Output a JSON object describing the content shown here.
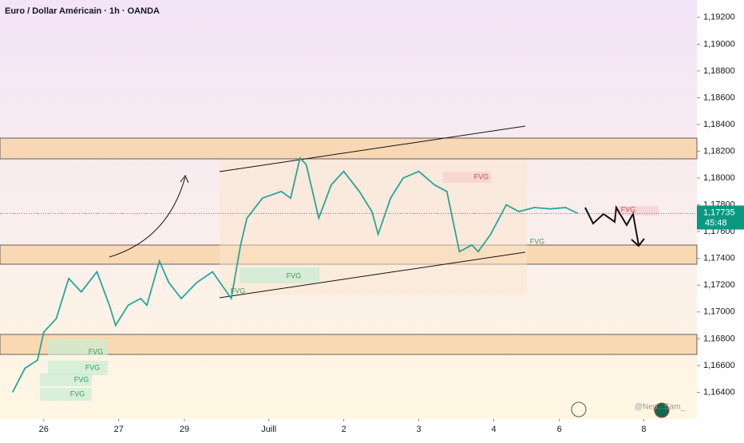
{
  "chart_data": {
    "type": "line",
    "title": "Euro / Dollar Américain · 1h · OANDA",
    "x": [
      -10,
      -6,
      -2,
      0,
      4,
      8,
      12,
      17,
      21,
      23,
      27,
      31,
      33,
      37,
      40,
      44,
      49,
      54,
      60,
      63,
      65,
      70,
      76,
      79,
      82,
      84,
      87,
      88,
      92,
      96,
      101,
      105,
      107,
      111,
      115,
      120,
      125,
      129,
      133,
      137,
      139,
      143,
      148,
      152,
      157,
      162,
      167,
      171
    ],
    "series": [
      {
        "name": "EURUSD",
        "color": "#26a69a",
        "values": [
          1.164,
          1.1658,
          1.1664,
          1.1685,
          1.1695,
          1.1725,
          1.1715,
          1.173,
          1.1705,
          1.169,
          1.1705,
          1.171,
          1.1705,
          1.1738,
          1.1722,
          1.171,
          1.1722,
          1.173,
          1.171,
          1.175,
          1.177,
          1.1785,
          1.179,
          1.1785,
          1.1815,
          1.181,
          1.178,
          1.177,
          1.1795,
          1.1805,
          1.179,
          1.1775,
          1.1758,
          1.1785,
          1.18,
          1.1805,
          1.1795,
          1.179,
          1.1745,
          1.175,
          1.1745,
          1.1758,
          1.178,
          1.1775,
          1.1778,
          1.1777,
          1.1778,
          1.17735
        ]
      }
    ],
    "xlim": [
      -14,
      209
    ],
    "xticks": [
      {
        "value": 0,
        "label": "26"
      },
      {
        "value": 24,
        "label": "27"
      },
      {
        "value": 45,
        "label": "29"
      },
      {
        "value": 72,
        "label": "Juill"
      },
      {
        "value": 96,
        "label": "2"
      },
      {
        "value": 120,
        "label": "3"
      },
      {
        "value": 144,
        "label": "4"
      },
      {
        "value": 165,
        "label": "6"
      },
      {
        "value": 192,
        "label": "8"
      }
    ],
    "ylim": [
      1.162,
      1.1933
    ],
    "yticks": [
      {
        "value": 1.164,
        "label": "1,16400"
      },
      {
        "value": 1.166,
        "label": "1,16600"
      },
      {
        "value": 1.168,
        "label": "1,16800"
      },
      {
        "value": 1.17,
        "label": "1,17000"
      },
      {
        "value": 1.172,
        "label": "1,17200"
      },
      {
        "value": 1.174,
        "label": "1,17400"
      },
      {
        "value": 1.176,
        "label": "1,17600"
      },
      {
        "value": 1.178,
        "label": "1,17800"
      },
      {
        "value": 1.18,
        "label": "1,18000"
      },
      {
        "value": 1.182,
        "label": "1,18200"
      },
      {
        "value": 1.184,
        "label": "1,18400"
      },
      {
        "value": 1.186,
        "label": "1,18600"
      },
      {
        "value": 1.188,
        "label": "1,18800"
      },
      {
        "value": 1.19,
        "label": "1,19000"
      },
      {
        "value": 1.192,
        "label": "1,19200"
      }
    ],
    "last_price": {
      "value": 1.17735,
      "label": "1,17735",
      "countdown": "45:48"
    },
    "annotations": [
      "FVG",
      "FVG",
      "FVG",
      "FVG",
      "FVG",
      "FVG",
      "FVG",
      "FVG",
      "FVG"
    ],
    "watermark": "@Nep...Sam_"
  }
}
